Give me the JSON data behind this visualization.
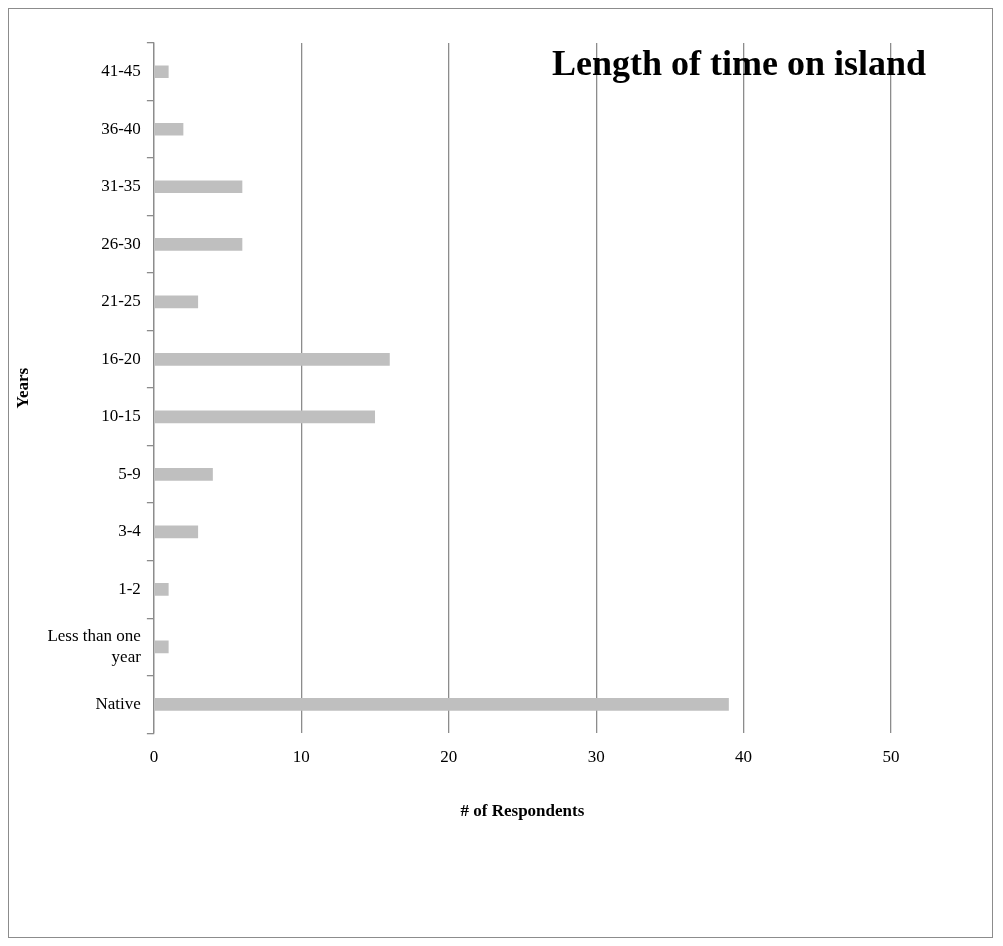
{
  "chart_data": {
    "type": "bar",
    "orientation": "horizontal",
    "title": "Length of time on island",
    "xlabel": "# of Respondents",
    "ylabel": "Years",
    "categories": [
      "41-45",
      "36-40",
      "31-35",
      "26-30",
      "21-25",
      "16-20",
      "10-15",
      "5-9",
      "3-4",
      "1-2",
      "Less than one year",
      "Native"
    ],
    "values": [
      1,
      2,
      6,
      6,
      3,
      16,
      15,
      4,
      3,
      1,
      1,
      39
    ],
    "color": "#bfbfbf",
    "xlim": [
      0,
      50
    ],
    "xticks": [
      0,
      10,
      20,
      30,
      40,
      50
    ],
    "grid": "x",
    "legend": false
  }
}
